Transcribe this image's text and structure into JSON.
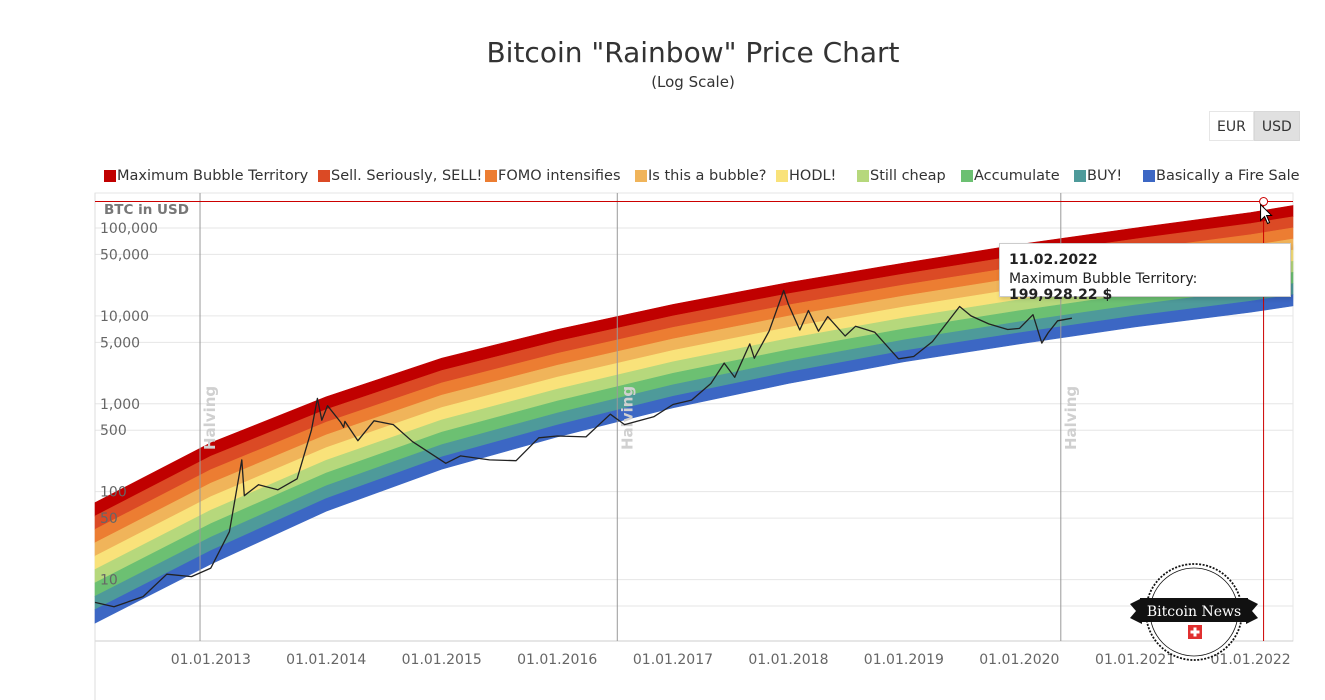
{
  "title": "Bitcoin \"Rainbow\" Price Chart",
  "subtitle": "(Log Scale)",
  "currency_toggle": {
    "options": [
      "EUR",
      "USD"
    ],
    "selected": "USD"
  },
  "tooltip": {
    "date": "11.02.2022",
    "series": "Maximum Bubble Territory:",
    "value": "199,928.22 $"
  },
  "logo": {
    "text": "Bitcoin News"
  },
  "colors": {
    "band_outline": "#000000",
    "crosshair": "#cc0000",
    "halving_line": "#999999",
    "price_line": "#222222"
  },
  "chart_data": {
    "type": "area",
    "scale": "log",
    "yaxis_title": "BTC in USD",
    "ylim": [
      2,
      250000
    ],
    "xlim": [
      "2012-01-01",
      "2022-05-15"
    ],
    "x_ticks": [
      "01.01.2013",
      "01.01.2014",
      "01.01.2015",
      "01.01.2016",
      "01.01.2017",
      "01.01.2018",
      "01.01.2019",
      "01.01.2020",
      "01.01.2021",
      "01.01.2022"
    ],
    "y_ticks": [
      "100,000",
      "50,000",
      "10,000",
      "5,000",
      "1,000",
      "500",
      "100",
      "50",
      "10"
    ],
    "y_tick_values": [
      100000,
      50000,
      10000,
      5000,
      1000,
      500,
      100,
      50,
      10
    ],
    "grid": true,
    "legend_position": "top",
    "bands": [
      {
        "name": "Maximum Bubble Territory",
        "color": "#c00000"
      },
      {
        "name": "Sell. Seriously, SELL!",
        "color": "#db4a25"
      },
      {
        "name": "FOMO intensifies",
        "color": "#ec7d32"
      },
      {
        "name": "Is this a bubble?",
        "color": "#f0b45a"
      },
      {
        "name": "HODL!",
        "color": "#f9e27a"
      },
      {
        "name": "Still cheap",
        "color": "#b6d87c"
      },
      {
        "name": "Accumulate",
        "color": "#6cc072"
      },
      {
        "name": "BUY!",
        "color": "#4e9a9a"
      },
      {
        "name": "Basically a Fire Sale",
        "color": "#3c67c4"
      }
    ],
    "band_edges": {
      "x": [
        "2012-01-01",
        "2013-01-01",
        "2014-01-01",
        "2015-01-01",
        "2016-01-01",
        "2017-01-01",
        "2018-01-01",
        "2019-01-01",
        "2020-01-01",
        "2021-01-01",
        "2022-01-01",
        "2022-05-15"
      ],
      "top": [
        75,
        360,
        1200,
        3300,
        7000,
        13500,
        24000,
        40000,
        65000,
        100000,
        150000,
        180000
      ],
      "bottom": [
        3.2,
        15,
        60,
        180,
        420,
        900,
        1700,
        3000,
        4800,
        7500,
        11000,
        13000
      ]
    },
    "halvings": [
      {
        "date": "2012-11-28",
        "label": "Halving"
      },
      {
        "date": "2016-07-09",
        "label": "Halving"
      },
      {
        "date": "2020-05-11",
        "label": "Halving"
      }
    ],
    "crosshair": {
      "date": "2022-02-11",
      "value": 199928.22
    },
    "series": [
      {
        "type": "line",
        "x": [
          "2012-01-01",
          "2012-03-01",
          "2012-06-01",
          "2012-08-15",
          "2012-11-01",
          "2013-01-01",
          "2013-03-01",
          "2013-04-09",
          "2013-04-17",
          "2013-06-01",
          "2013-08-01",
          "2013-10-01",
          "2013-11-15",
          "2013-12-04",
          "2013-12-18",
          "2014-01-05",
          "2014-02-15",
          "2014-02-25",
          "2014-03-01",
          "2014-04-11",
          "2014-06-01",
          "2014-08-01",
          "2014-10-01",
          "2015-01-14",
          "2015-03-01",
          "2015-06-01",
          "2015-08-24",
          "2015-11-04",
          "2016-01-01",
          "2016-04-01",
          "2016-06-17",
          "2016-08-01",
          "2016-11-01",
          "2017-01-01",
          "2017-03-01",
          "2017-05-01",
          "2017-06-12",
          "2017-07-15",
          "2017-09-01",
          "2017-09-15",
          "2017-11-01",
          "2017-12-17",
          "2018-01-01",
          "2018-02-06",
          "2018-03-05",
          "2018-04-06",
          "2018-05-05",
          "2018-06-29",
          "2018-08-01",
          "2018-10-01",
          "2018-11-25",
          "2018-12-15",
          "2019-02-01",
          "2019-04-01",
          "2019-06-26",
          "2019-08-01",
          "2019-09-26",
          "2019-11-25",
          "2020-01-01",
          "2020-02-13",
          "2020-03-12",
          "2020-04-01",
          "2020-05-01",
          "2020-06-15"
        ],
        "values": [
          5.5,
          4.9,
          6.4,
          11.5,
          10.8,
          13.5,
          35,
          230,
          90,
          120,
          105,
          140,
          500,
          1150,
          650,
          950,
          620,
          540,
          630,
          380,
          640,
          580,
          370,
          210,
          255,
          230,
          225,
          410,
          430,
          420,
          760,
          580,
          710,
          980,
          1100,
          1700,
          2900,
          2000,
          4800,
          3300,
          6700,
          19500,
          13500,
          6900,
          11500,
          6700,
          9800,
          5900,
          7600,
          6500,
          3900,
          3250,
          3450,
          5100,
          12800,
          10000,
          8100,
          7000,
          7200,
          10300,
          4900,
          6400,
          8800,
          9400
        ]
      }
    ]
  }
}
